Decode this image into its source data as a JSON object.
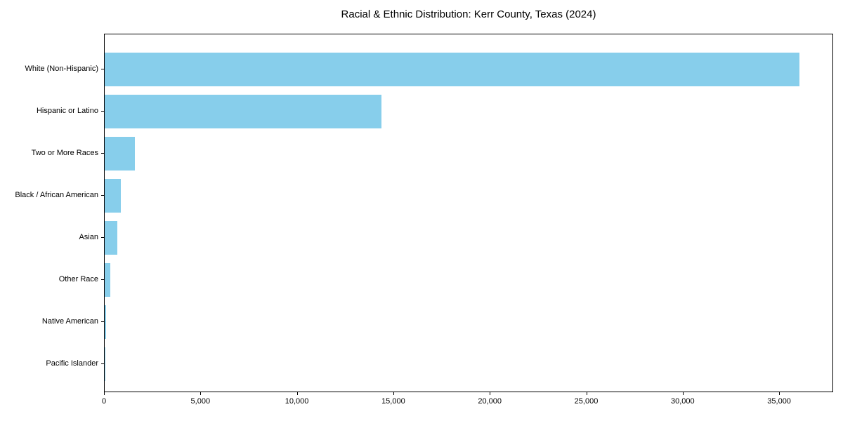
{
  "chart_data": {
    "type": "bar",
    "orientation": "horizontal",
    "title": "Racial & Ethnic Distribution: Kerr County, Texas (2024)",
    "categories": [
      "White (Non-Hispanic)",
      "Hispanic or Latino",
      "Two or More Races",
      "Black / African American",
      "Asian",
      "Other Race",
      "Native American",
      "Pacific Islander"
    ],
    "values": [
      36000,
      14330,
      1550,
      830,
      640,
      300,
      75,
      20
    ],
    "bar_color": "#87CEEB",
    "xlabel": "",
    "ylabel": "",
    "xlim": [
      0,
      37800
    ],
    "xticks": [
      0,
      5000,
      10000,
      15000,
      20000,
      25000,
      30000,
      35000
    ],
    "xtick_labels": [
      "0",
      "5,000",
      "10,000",
      "15,000",
      "20,000",
      "25,000",
      "30,000",
      "35,000"
    ],
    "grid": false,
    "legend": null,
    "background_color": "#ffffff",
    "text_color": "#000000"
  }
}
